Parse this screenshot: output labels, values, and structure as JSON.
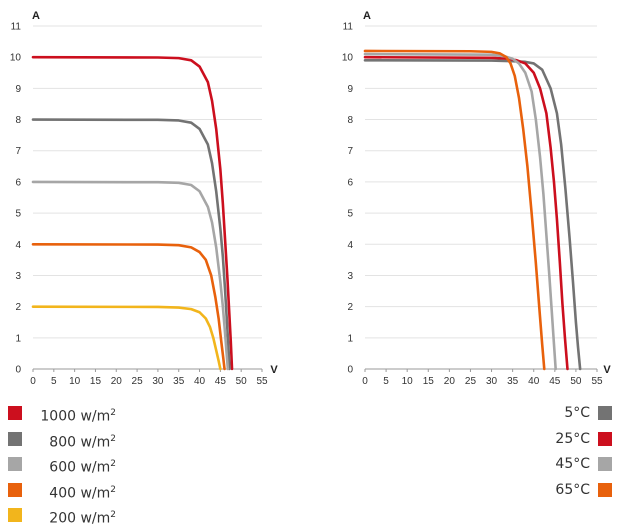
{
  "chart_data": [
    {
      "type": "line",
      "ylabel": "A",
      "xlabel": "V",
      "xlim": [
        0,
        55
      ],
      "ylim": [
        0,
        11
      ],
      "xticks": [
        "0",
        "5",
        "10",
        "15",
        "20",
        "25",
        "30",
        "35",
        "40",
        "45",
        "50",
        "55"
      ],
      "yticks": [
        "0",
        "1",
        "2",
        "3",
        "4",
        "5",
        "6",
        "7",
        "8",
        "9",
        "10",
        "11"
      ],
      "grid": "horizontal",
      "legend_position": "bottom-left",
      "series": [
        {
          "name": "1000 w/m",
          "sup": "2",
          "color": "#cc0f1e",
          "isc": 10,
          "voc": 47.8,
          "x": [
            0,
            30,
            35,
            38,
            40,
            42,
            43,
            44,
            45,
            45.6,
            46.2,
            46.7,
            47.1,
            47.5,
            47.8
          ],
          "y": [
            10,
            9.99,
            9.97,
            9.9,
            9.7,
            9.2,
            8.6,
            7.7,
            6.4,
            5.3,
            4.0,
            2.9,
            1.9,
            0.9,
            0
          ]
        },
        {
          "name": "800 w/m",
          "sup": "2",
          "color": "#737373",
          "isc": 8,
          "voc": 47.2,
          "x": [
            0,
            30,
            35,
            38,
            40,
            42,
            43,
            44,
            45,
            45.6,
            46.1,
            46.5,
            46.9,
            47.2
          ],
          "y": [
            8,
            7.99,
            7.97,
            7.9,
            7.7,
            7.2,
            6.6,
            5.7,
            4.5,
            3.6,
            2.6,
            1.7,
            0.8,
            0
          ]
        },
        {
          "name": "600 w/m",
          "sup": "2",
          "color": "#a6a6a6",
          "isc": 6,
          "voc": 46.8,
          "x": [
            0,
            30,
            35,
            38,
            40,
            42,
            43,
            44,
            45,
            45.6,
            46.1,
            46.5,
            46.8
          ],
          "y": [
            6,
            5.99,
            5.97,
            5.9,
            5.7,
            5.2,
            4.7,
            3.9,
            2.8,
            2.0,
            1.2,
            0.5,
            0
          ]
        },
        {
          "name": "400 w/m",
          "sup": "2",
          "color": "#e8610c",
          "isc": 4,
          "voc": 46.0,
          "x": [
            0,
            30,
            35,
            38,
            40,
            41.5,
            42.8,
            43.8,
            44.6,
            45.2,
            45.7,
            46.0
          ],
          "y": [
            4,
            3.99,
            3.97,
            3.9,
            3.75,
            3.5,
            3.0,
            2.3,
            1.6,
            0.9,
            0.35,
            0
          ]
        },
        {
          "name": "200 w/m",
          "sup": "2",
          "color": "#f2b51c",
          "isc": 2,
          "voc": 45.0,
          "x": [
            0,
            30,
            35,
            38,
            40,
            41.5,
            42.5,
            43.3,
            44.0,
            44.6,
            45.0
          ],
          "y": [
            2,
            1.99,
            1.97,
            1.92,
            1.82,
            1.62,
            1.35,
            1.0,
            0.6,
            0.25,
            0
          ]
        }
      ]
    },
    {
      "type": "line",
      "ylabel": "A",
      "xlabel": "V",
      "xlim": [
        0,
        55
      ],
      "ylim": [
        0,
        11
      ],
      "xticks": [
        "0",
        "5",
        "10",
        "15",
        "20",
        "25",
        "30",
        "35",
        "40",
        "45",
        "50",
        "55"
      ],
      "yticks": [
        "0",
        "1",
        "2",
        "3",
        "4",
        "5",
        "6",
        "7",
        "8",
        "9",
        "10",
        "11"
      ],
      "grid": "horizontal",
      "legend_position": "bottom-right",
      "series": [
        {
          "name": "5°C",
          "color": "#737373",
          "x": [
            0,
            30,
            35,
            38,
            40,
            42,
            44,
            45.5,
            46.5,
            47.5,
            48.5,
            49.3,
            50.0,
            50.5,
            51.0
          ],
          "y": [
            9.9,
            9.89,
            9.87,
            9.85,
            9.8,
            9.6,
            9.0,
            8.2,
            7.2,
            5.8,
            4.2,
            2.8,
            1.5,
            0.7,
            0
          ]
        },
        {
          "name": "25°C",
          "color": "#cc0f1e",
          "x": [
            0,
            30,
            34,
            36,
            38,
            40,
            41.5,
            43,
            44,
            44.8,
            45.5,
            46.2,
            46.8,
            47.4,
            48.0
          ],
          "y": [
            10.0,
            9.98,
            9.95,
            9.9,
            9.8,
            9.5,
            9.0,
            8.2,
            7.1,
            6.0,
            4.8,
            3.4,
            2.1,
            1.0,
            0
          ]
        },
        {
          "name": "45°C",
          "color": "#a6a6a6",
          "x": [
            0,
            30,
            33,
            35,
            36.5,
            38,
            39.5,
            40.5,
            41.5,
            42.3,
            43.0,
            43.7,
            44.3,
            44.8,
            45.2
          ],
          "y": [
            10.1,
            10.08,
            10.03,
            9.95,
            9.8,
            9.5,
            8.9,
            8.0,
            6.8,
            5.6,
            4.3,
            3.0,
            1.8,
            0.8,
            0
          ]
        },
        {
          "name": "65°C",
          "color": "#e8610c",
          "x": [
            0,
            25,
            30,
            32,
            33.5,
            34.5,
            35.5,
            36.5,
            37.5,
            38.5,
            39.5,
            40.5,
            41.3,
            42.0,
            42.5
          ],
          "y": [
            10.2,
            10.19,
            10.17,
            10.12,
            10.0,
            9.8,
            9.4,
            8.7,
            7.7,
            6.5,
            5.0,
            3.4,
            2.0,
            0.8,
            0
          ]
        }
      ]
    }
  ]
}
